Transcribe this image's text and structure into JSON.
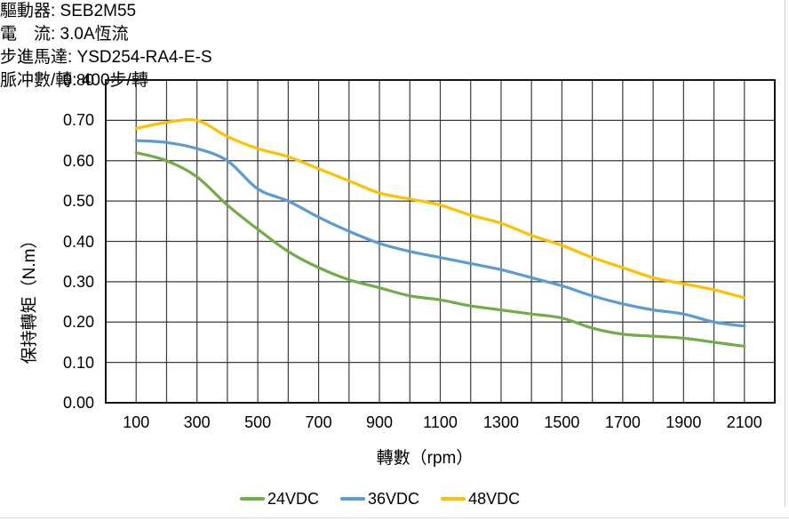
{
  "header": {
    "driver": "驅動器: SEB2M55",
    "current": "電　流: 3.0A恆流",
    "motor": "步進馬達: YSD254-RA4-E-S",
    "pulses": "脈冲數/轉: 400步/轉"
  },
  "colors": {
    "grid": "#3b3b3b",
    "border": "#141414",
    "series_24vdc": "#70AD47",
    "series_36vdc": "#5B9BD5",
    "series_48vdc": "#FFC000"
  },
  "chart_data": {
    "type": "line",
    "title": "",
    "xlabel": "轉數（rpm）",
    "ylabel": "保持轉矩（N.m）",
    "xlim": [
      0,
      2200
    ],
    "ylim": [
      0,
      0.8
    ],
    "x_grid_step": 100,
    "y_grid_step": 0.1,
    "grid": true,
    "legend_position": "bottom",
    "x_ticks": [
      "100",
      "300",
      "500",
      "700",
      "900",
      "1100",
      "1300",
      "1500",
      "1700",
      "1900",
      "2100"
    ],
    "x_tick_values": [
      100,
      300,
      500,
      700,
      900,
      1100,
      1300,
      1500,
      1700,
      1900,
      2100
    ],
    "y_ticks": [
      "0.80",
      "0.70",
      "0.60",
      "0.50",
      "0.40",
      "0.30",
      "0.20",
      "0.10",
      "0.00"
    ],
    "y_tick_values": [
      0.8,
      0.7,
      0.6,
      0.5,
      0.4,
      0.3,
      0.2,
      0.1,
      0.0
    ],
    "x": [
      100,
      200,
      300,
      400,
      500,
      600,
      700,
      800,
      900,
      1000,
      1100,
      1200,
      1300,
      1400,
      1500,
      1600,
      1700,
      1800,
      1900,
      2000,
      2100
    ],
    "series": [
      {
        "name": "24VDC",
        "color": "#70AD47",
        "values": [
          0.62,
          0.6,
          0.56,
          0.49,
          0.43,
          0.375,
          0.335,
          0.305,
          0.285,
          0.265,
          0.255,
          0.24,
          0.23,
          0.22,
          0.21,
          0.185,
          0.17,
          0.165,
          0.16,
          0.15,
          0.14
        ]
      },
      {
        "name": "36VDC",
        "color": "#5B9BD5",
        "values": [
          0.65,
          0.645,
          0.63,
          0.6,
          0.53,
          0.5,
          0.46,
          0.425,
          0.395,
          0.375,
          0.36,
          0.345,
          0.33,
          0.31,
          0.29,
          0.265,
          0.245,
          0.23,
          0.22,
          0.2,
          0.19
        ]
      },
      {
        "name": "48VDC",
        "color": "#FFC000",
        "values": [
          0.68,
          0.695,
          0.7,
          0.66,
          0.63,
          0.61,
          0.58,
          0.55,
          0.52,
          0.505,
          0.49,
          0.465,
          0.445,
          0.415,
          0.39,
          0.36,
          0.335,
          0.31,
          0.295,
          0.28,
          0.26
        ]
      }
    ]
  }
}
